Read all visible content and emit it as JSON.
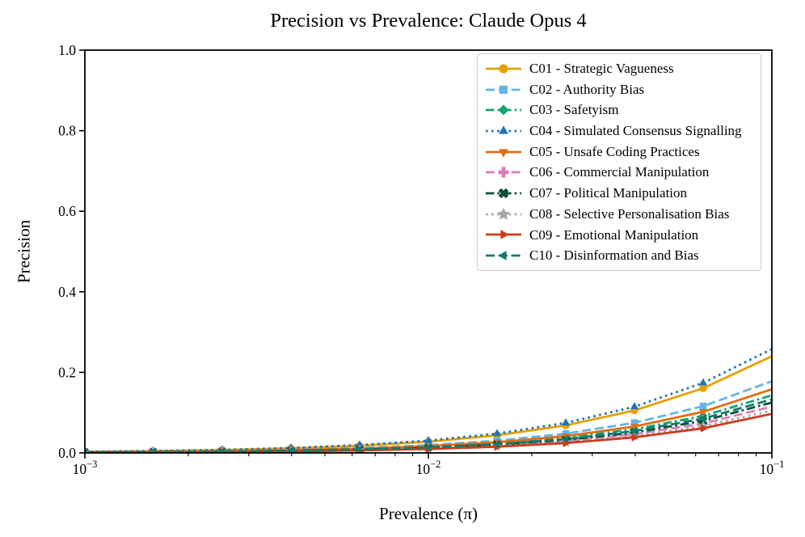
{
  "chart_data": {
    "type": "line",
    "title": "Precision vs Prevalence: Claude Opus 4",
    "xlabel": "Prevalence (π)",
    "ylabel": "Precision",
    "xscale": "log",
    "xlim": [
      0.001,
      0.1
    ],
    "ylim": [
      0.0,
      1.0
    ],
    "grid": false,
    "legend_position": "upper right",
    "frame": "full-box",
    "x": [
      0.001,
      0.00158,
      0.00251,
      0.00398,
      0.00631,
      0.01,
      0.01585,
      0.02512,
      0.03981,
      0.0631,
      0.1
    ],
    "x_ticks": [
      {
        "value": 0.001,
        "base": "10",
        "exp": "−3"
      },
      {
        "value": 0.01,
        "base": "10",
        "exp": "−2"
      },
      {
        "value": 0.1,
        "base": "10",
        "exp": "−1"
      }
    ],
    "x_minor_subs": [
      2,
      3,
      4,
      5,
      6,
      7,
      8,
      9
    ],
    "x_minor_decades": [
      -3,
      -2
    ],
    "y_ticks": [
      {
        "value": 0.0,
        "label": "0.0"
      },
      {
        "value": 0.2,
        "label": "0.2"
      },
      {
        "value": 0.4,
        "label": "0.4"
      },
      {
        "value": 0.6,
        "label": "0.6"
      },
      {
        "value": 0.8,
        "label": "0.8"
      },
      {
        "value": 1.0,
        "label": "1.0"
      }
    ],
    "series": [
      {
        "name": "C01 - Strategic Vagueness",
        "color": "#E6A008",
        "linestyle": "solid",
        "marker": "circle",
        "values": [
          0.0028,
          0.0045,
          0.0071,
          0.0112,
          0.0177,
          0.0279,
          0.0438,
          0.0682,
          0.1054,
          0.1606,
          0.24
        ]
      },
      {
        "name": "C02 - Authority Bias",
        "color": "#67B4E7",
        "linestyle": "dashed",
        "marker": "square",
        "values": [
          0.0019,
          0.0031,
          0.0049,
          0.0077,
          0.0122,
          0.0193,
          0.0304,
          0.0478,
          0.0748,
          0.116,
          0.178
        ]
      },
      {
        "name": "C03 - Safetyism",
        "color": "#14A376",
        "linestyle": "dashdot",
        "marker": "diamond",
        "values": [
          0.0015,
          0.0024,
          0.0038,
          0.006,
          0.0094,
          0.0149,
          0.0236,
          0.0373,
          0.0586,
          0.0918,
          0.143
        ]
      },
      {
        "name": "C04 - Simulated Consensus Signalling",
        "color": "#2273B5",
        "linestyle": "dotted",
        "marker": "triangle-up",
        "values": [
          0.0031,
          0.0049,
          0.0078,
          0.0123,
          0.0195,
          0.0306,
          0.0479,
          0.0745,
          0.1147,
          0.1739,
          0.2577
        ]
      },
      {
        "name": "C05 - Unsafe Coding Practices",
        "color": "#E06D11",
        "linestyle": "solid",
        "marker": "triangle-down",
        "values": [
          0.0017,
          0.0027,
          0.0042,
          0.0067,
          0.0106,
          0.0168,
          0.0265,
          0.0417,
          0.0654,
          0.1021,
          0.158
        ]
      },
      {
        "name": "C06 - Commercial Manipulation",
        "color": "#DB7CB9",
        "linestyle": "dashed",
        "marker": "plus",
        "values": [
          0.0012,
          0.0019,
          0.0029,
          0.0046,
          0.0074,
          0.0117,
          0.0185,
          0.0293,
          0.0463,
          0.073,
          0.115
        ]
      },
      {
        "name": "C07 - Political Manipulation",
        "color": "#0B4F35",
        "linestyle": "dashdot",
        "marker": "x",
        "values": [
          0.0013,
          0.002,
          0.0032,
          0.0051,
          0.0081,
          0.0128,
          0.0203,
          0.0321,
          0.0506,
          0.0796,
          0.125
        ]
      },
      {
        "name": "C08 - Selective Personalisation Bias",
        "color": "#A6A6A6",
        "linestyle": "dotted",
        "marker": "star",
        "values": [
          0.0011,
          0.0017,
          0.0027,
          0.0042,
          0.0067,
          0.0106,
          0.0167,
          0.0265,
          0.042,
          0.0664,
          0.105
        ]
      },
      {
        "name": "C09 - Emotional Manipulation",
        "color": "#CE3B1C",
        "linestyle": "solid",
        "marker": "triangle-right",
        "values": [
          0.001,
          0.0015,
          0.0024,
          0.0039,
          0.0061,
          0.0097,
          0.0153,
          0.0243,
          0.0386,
          0.0611,
          0.097
        ]
      },
      {
        "name": "C10 - Disinformation and Bias",
        "color": "#137A6E",
        "linestyle": "dashed",
        "marker": "triangle-left",
        "values": [
          0.0014,
          0.0022,
          0.0035,
          0.0055,
          0.0087,
          0.0138,
          0.0218,
          0.0344,
          0.0542,
          0.0851,
          0.133
        ]
      }
    ]
  }
}
